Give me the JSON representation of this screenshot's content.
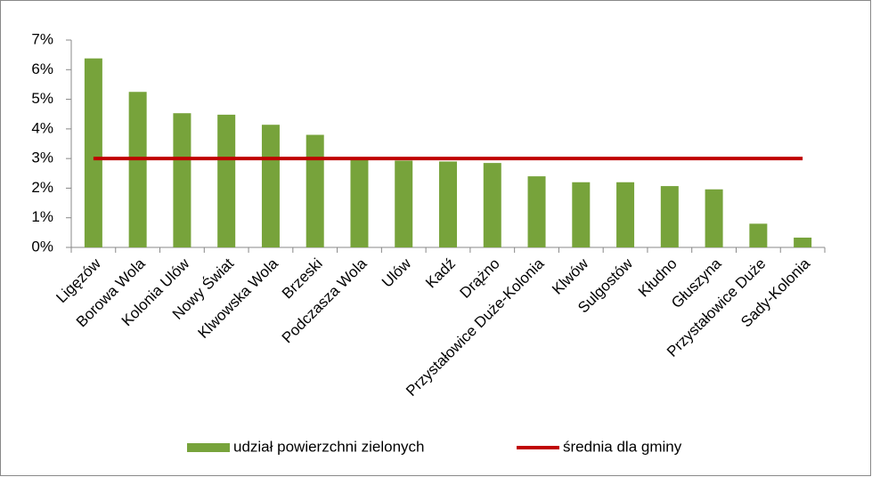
{
  "chart_data": {
    "type": "bar",
    "categories": [
      "Ligęzów",
      "Borowa Wola",
      "Kolonia Ulów",
      "Nowy Świat",
      "Klwowska Wola",
      "Brzeski",
      "Podczasza Wola",
      "Ulów",
      "Kadź",
      "Drążno",
      "Przystałowice Duże-Kolonia",
      "Klwów",
      "Sulgostów",
      "Kłudno",
      "Głuszyna",
      "Przystałowice Duże",
      "Sady-Kolonia"
    ],
    "series": [
      {
        "name": "udział powierzchni zielonych",
        "type": "bar",
        "color": "#77a33b",
        "values": [
          6.38,
          5.25,
          4.53,
          4.48,
          4.14,
          3.8,
          3.0,
          2.93,
          2.9,
          2.85,
          2.4,
          2.2,
          2.2,
          2.07,
          1.96,
          0.8,
          0.33
        ]
      },
      {
        "name": "średnia dla gminy",
        "type": "line",
        "color": "#c00000",
        "values": [
          3,
          3,
          3,
          3,
          3,
          3,
          3,
          3,
          3,
          3,
          3,
          3,
          3,
          3,
          3,
          3,
          3
        ]
      }
    ],
    "ylim": [
      0,
      7
    ],
    "yticks": [
      {
        "value": 0,
        "label": "0%"
      },
      {
        "value": 1,
        "label": "1%"
      },
      {
        "value": 2,
        "label": "2%"
      },
      {
        "value": 3,
        "label": "3%"
      },
      {
        "value": 4,
        "label": "4%"
      },
      {
        "value": 5,
        "label": "5%"
      },
      {
        "value": 6,
        "label": "6%"
      },
      {
        "value": 7,
        "label": "7%"
      }
    ],
    "grid": false,
    "legend": "bottom"
  }
}
